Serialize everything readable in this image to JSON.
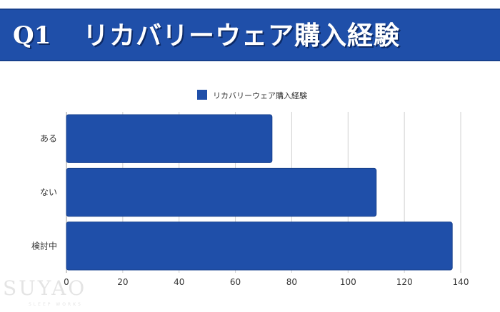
{
  "banner": {
    "question": "Q1",
    "title": "リカバリーウェア購入経験"
  },
  "watermark": {
    "text": "SUYAO",
    "sub": "SLEEP WORKS"
  },
  "colors": {
    "banner": "#1f4fa9",
    "bar": "#1f4fa9",
    "bar_border": "#17408d",
    "grid": "#d0d0d0"
  },
  "chart_data": {
    "type": "bar",
    "orientation": "horizontal",
    "categories": [
      "ある",
      "ない",
      "検討中"
    ],
    "series": [
      {
        "name": "リカバリーウェア購入経験",
        "values": [
          73,
          110,
          137
        ]
      }
    ],
    "xlim": [
      0,
      140
    ],
    "xticks": [
      0,
      20,
      40,
      60,
      80,
      100,
      120,
      140
    ],
    "grid": true,
    "legend": "top-center"
  }
}
